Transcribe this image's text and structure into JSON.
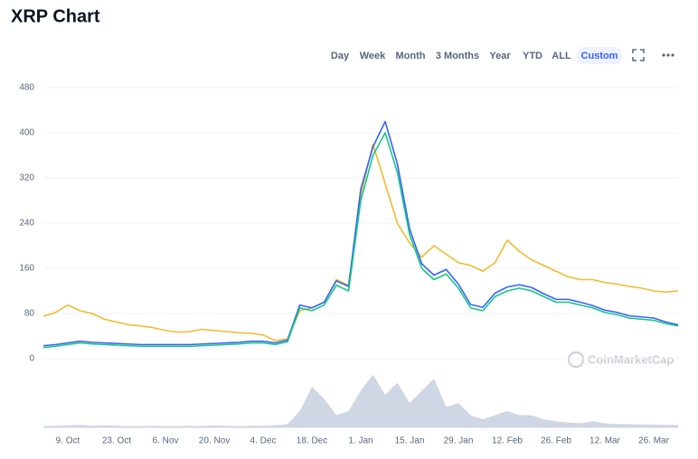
{
  "ui": {
    "title": "XRP Chart",
    "ranges": [
      "Day",
      "Week",
      "Month",
      "3 Months",
      "Year",
      "YTD",
      "ALL",
      "Custom"
    ],
    "active_range": 7,
    "watermark": "CoinMarketCap"
  },
  "chart_data": {
    "type": "line",
    "grid": true,
    "categories": [
      null,
      null,
      "9. Oct",
      null,
      null,
      null,
      "23. Oct",
      null,
      null,
      null,
      "6. Nov",
      null,
      null,
      null,
      "20. Nov",
      null,
      null,
      null,
      "4. Dec",
      null,
      null,
      null,
      "18. Dec",
      null,
      null,
      null,
      "1. Jan",
      null,
      null,
      null,
      "15. Jan",
      null,
      null,
      null,
      "29. Jan",
      null,
      null,
      null,
      "12. Feb",
      null,
      null,
      null,
      "26. Feb",
      null,
      null,
      null,
      "12. Mar",
      null,
      null,
      null,
      "26. Mar",
      null,
      null
    ],
    "ylim": [
      0,
      480
    ],
    "yticks": [
      0,
      80,
      160,
      240,
      320,
      400,
      480
    ],
    "series": [
      {
        "color": "#f3ba2f",
        "values": [
          75,
          82,
          95,
          85,
          80,
          70,
          65,
          60,
          58,
          55,
          50,
          47,
          48,
          52,
          50,
          48,
          46,
          45,
          42,
          32,
          35,
          85,
          90,
          100,
          140,
          130,
          290,
          380,
          310,
          240,
          205,
          180,
          200,
          185,
          170,
          165,
          155,
          170,
          210,
          190,
          175,
          165,
          155,
          145,
          140,
          140,
          135,
          132,
          128,
          125,
          120,
          118,
          120
        ]
      },
      {
        "color": "#3861fb",
        "values": [
          23,
          25,
          28,
          31,
          29,
          28,
          27,
          26,
          25,
          25,
          25,
          25,
          25,
          26,
          27,
          28,
          29,
          31,
          31,
          28,
          33,
          95,
          90,
          100,
          138,
          128,
          300,
          375,
          420,
          345,
          230,
          168,
          148,
          158,
          132,
          96,
          91,
          116,
          127,
          131,
          126,
          115,
          105,
          105,
          100,
          94,
          86,
          82,
          76,
          74,
          72,
          65,
          60
        ]
      },
      {
        "color": "#16c784",
        "values": [
          20,
          22,
          25,
          28,
          26,
          25,
          24,
          23,
          22,
          22,
          22,
          22,
          22,
          23,
          24,
          25,
          26,
          28,
          28,
          25,
          30,
          90,
          85,
          95,
          130,
          120,
          280,
          360,
          400,
          330,
          220,
          160,
          140,
          150,
          125,
          90,
          85,
          110,
          120,
          125,
          120,
          110,
          100,
          100,
          95,
          90,
          82,
          78,
          72,
          70,
          68,
          62,
          58
        ]
      }
    ],
    "volume": {
      "color": "#cfd6e4",
      "ylim": [
        0,
        14
      ],
      "values": [
        0.3,
        0.4,
        0.5,
        0.6,
        0.4,
        0.5,
        0.4,
        0.3,
        0.3,
        0.4,
        0.3,
        0.3,
        0.4,
        0.3,
        0.5,
        0.4,
        0.3,
        0.4,
        0.4,
        0.5,
        0.8,
        4,
        10,
        7,
        3,
        4,
        9,
        13,
        8,
        11,
        6,
        9,
        12,
        5,
        6,
        3,
        2,
        3,
        4,
        3,
        3,
        2,
        1.5,
        1.2,
        1,
        1.5,
        1,
        0.8,
        0.8,
        0.7,
        0.7,
        0.6,
        0.6
      ]
    }
  }
}
